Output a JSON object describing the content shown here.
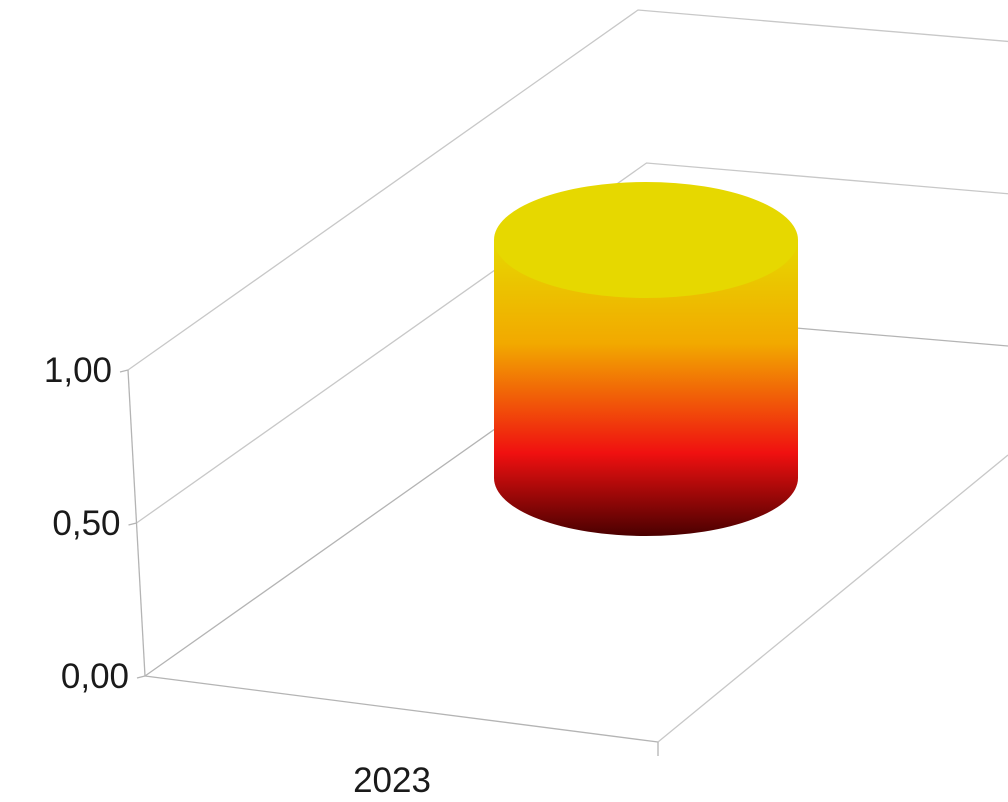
{
  "chart_data": {
    "type": "bar",
    "style": "3d-cylinder",
    "categories": [
      "2023"
    ],
    "series": [
      {
        "values": [
          1.0
        ]
      }
    ],
    "title": "",
    "xlabel": "",
    "ylabel": "",
    "ylim": [
      0,
      1
    ],
    "y_ticks": [
      "0,00",
      "0,50",
      "1,00"
    ],
    "y_tick_values": [
      0,
      0.5,
      1.0
    ],
    "grid": true,
    "legend": "none",
    "colors": {
      "top": "#e6d800",
      "upper": "#f2a900",
      "middle": "#f01010",
      "bottom": "#4a0000",
      "gridlines": "#c8c8c8"
    }
  }
}
